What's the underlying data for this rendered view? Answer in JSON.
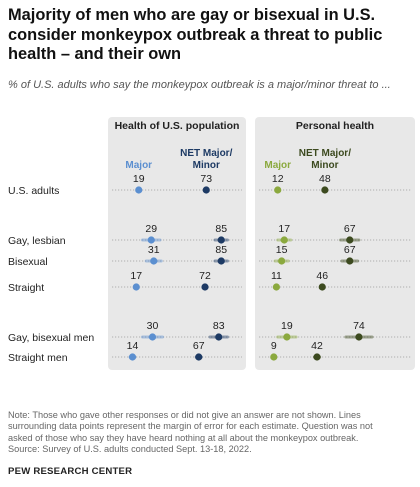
{
  "header": {
    "title": "Majority of men who are gay or bisexual in U.S. consider monkeypox outbreak a threat to public health – and their own",
    "subtitle": "% of U.S. adults who say the monkeypox outbreak is a major/minor threat to ..."
  },
  "footer": {
    "note_lines": [
      "Note: Those who gave other responses or did not give an answer are not shown. Lines",
      "surrounding data points represent the margin of error for each estimate. Question was not",
      "asked of those who say they have heard nothing at all about the monkeypox outbreak."
    ],
    "source": "Source: Survey of U.S. adults conducted Sept. 13-18, 2022.",
    "brand": "PEW RESEARCH CENTER"
  },
  "colors": {
    "hp_major": "#5b8fd0",
    "hp_net": "#1d3a64",
    "ph_major": "#8ba93e",
    "ph_net": "#3c4a1f",
    "panel_bg": "#e8e8e8"
  },
  "chart_data": [
    {
      "type": "scatter",
      "title": "Health of U.S. population",
      "categories": [
        "U.S. adults",
        "Gay, lesbian",
        "Bisexual",
        "Straight",
        "Gay, bisexual men",
        "Straight men"
      ],
      "xlim": [
        0,
        100
      ],
      "series": [
        {
          "name": "Major",
          "values": [
            19,
            29,
            31,
            17,
            30,
            14
          ],
          "error_low": [
            null,
            22,
            25,
            null,
            22,
            12
          ],
          "error_high": [
            null,
            36,
            37,
            null,
            38,
            16
          ]
        },
        {
          "name": "NET Major/ Minor",
          "values": [
            73,
            85,
            85,
            72,
            83,
            67
          ],
          "error_low": [
            null,
            80,
            80,
            null,
            76,
            65
          ],
          "error_high": [
            null,
            90,
            90,
            null,
            90,
            69
          ]
        }
      ]
    },
    {
      "type": "scatter",
      "title": "Personal health",
      "categories": [
        "U.S. adults",
        "Gay, lesbian",
        "Bisexual",
        "Straight",
        "Gay, bisexual men",
        "Straight men"
      ],
      "xlim": [
        0,
        100
      ],
      "series": [
        {
          "name": "Major",
          "values": [
            12,
            17,
            15,
            11,
            19,
            9
          ],
          "error_low": [
            null,
            12,
            10,
            null,
            12,
            8
          ],
          "error_high": [
            null,
            22,
            20,
            null,
            26,
            10
          ]
        },
        {
          "name": "NET Major/ Minor",
          "values": [
            48,
            67,
            67,
            46,
            74,
            42
          ],
          "error_low": [
            null,
            60,
            61,
            null,
            64,
            40
          ],
          "error_high": [
            null,
            74,
            73,
            null,
            84,
            44
          ]
        }
      ]
    }
  ]
}
